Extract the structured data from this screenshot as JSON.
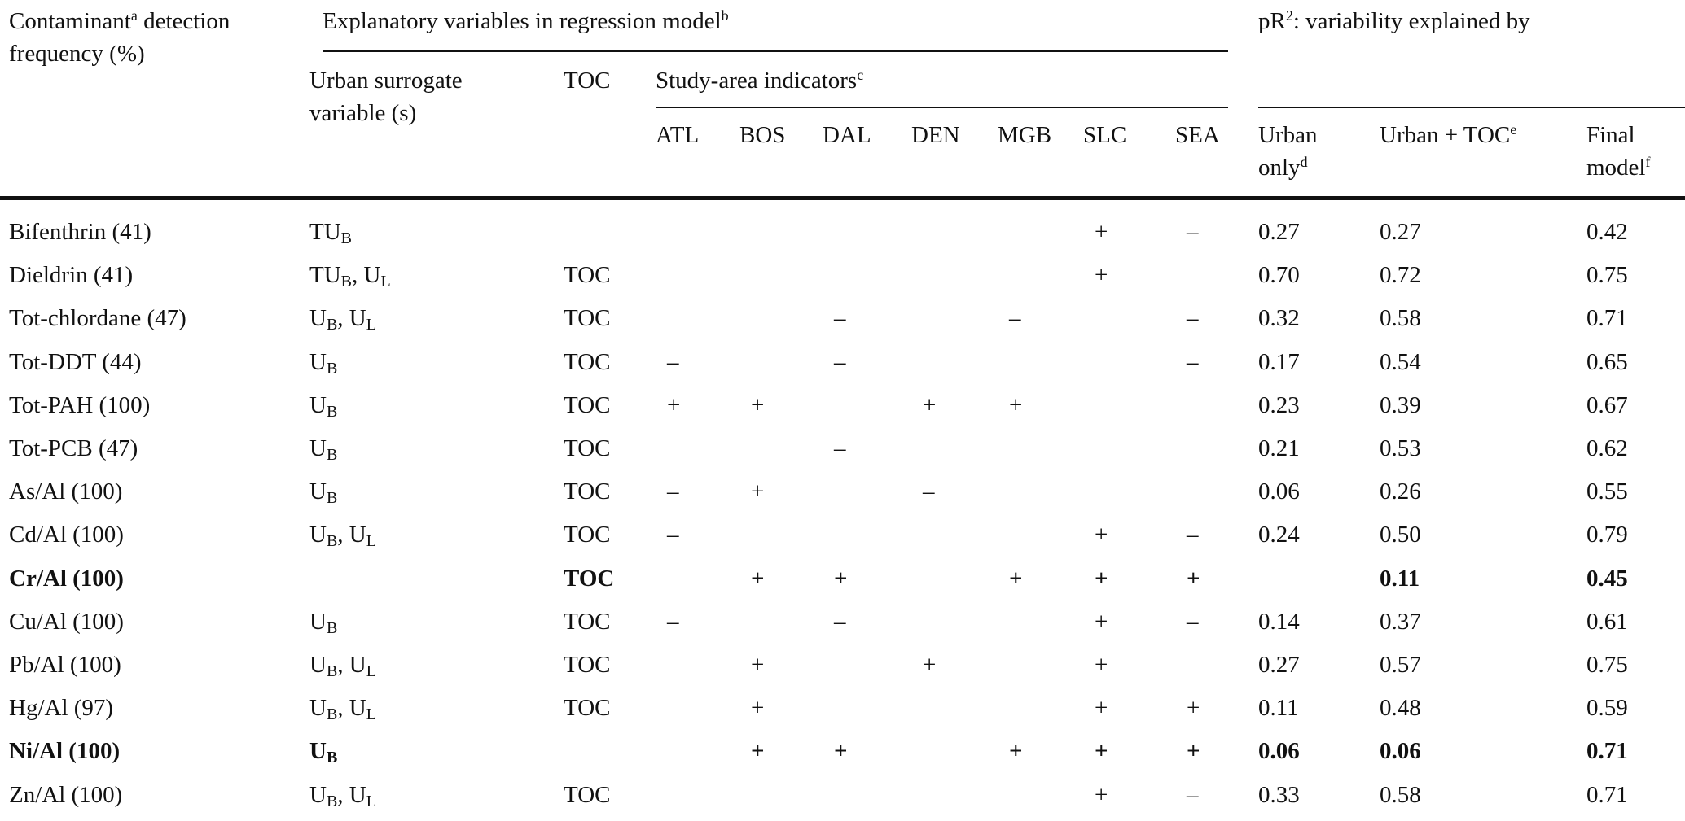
{
  "header": {
    "contaminant": [
      [
        {
          "t": "Contaminant"
        },
        {
          "sup": "a"
        },
        {
          "t": " detection"
        }
      ],
      [
        {
          "t": "frequency (%)"
        }
      ]
    ],
    "explanatory": [
      [
        {
          "t": "Explanatory variables in regression model"
        },
        {
          "sup": "b"
        }
      ]
    ],
    "urban_surrogate": [
      [
        {
          "t": "Urban surrogate"
        }
      ],
      [
        {
          "t": "variable (s)"
        }
      ]
    ],
    "toc": [
      [
        {
          "t": "TOC"
        }
      ]
    ],
    "study_area": [
      [
        {
          "t": "Study-area indicators"
        },
        {
          "sup": "c"
        }
      ]
    ],
    "areas": [
      "ATL",
      "BOS",
      "DAL",
      "DEN",
      "MGB",
      "SLC",
      "SEA"
    ],
    "pr2": [
      [
        {
          "t": "pR"
        },
        {
          "sup": "2"
        },
        {
          "t": ": variability explained by"
        }
      ]
    ],
    "urban_only": [
      [
        {
          "t": "Urban"
        }
      ],
      [
        {
          "t": "only"
        },
        {
          "sup": "d"
        }
      ]
    ],
    "urban_toc": [
      [
        {
          "t": "Urban + TOC"
        },
        {
          "sup": "e"
        }
      ]
    ],
    "final": [
      [
        {
          "t": "Final"
        }
      ],
      [
        {
          "t": "model"
        },
        {
          "sup": "f"
        }
      ]
    ]
  },
  "table": {
    "rows": [
      {
        "contaminant": "Bifenthrin (41)",
        "urban": [
          {
            "t": "TU"
          },
          {
            "sub": "B"
          }
        ],
        "toc": null,
        "areas": [
          null,
          null,
          null,
          null,
          null,
          "+",
          "–"
        ],
        "urban_only": "0.27",
        "urban_toc": "0.27",
        "final": "0.42",
        "bold": false
      },
      {
        "contaminant": "Dieldrin (41)",
        "urban": [
          {
            "t": "TU"
          },
          {
            "sub": "B"
          },
          {
            "t": ", U"
          },
          {
            "sub": "L"
          }
        ],
        "toc": "TOC",
        "areas": [
          null,
          null,
          null,
          null,
          null,
          "+",
          null
        ],
        "urban_only": "0.70",
        "urban_toc": "0.72",
        "final": "0.75",
        "bold": false
      },
      {
        "contaminant": "Tot-chlordane (47)",
        "urban": [
          {
            "t": "U"
          },
          {
            "sub": "B"
          },
          {
            "t": ", U"
          },
          {
            "sub": "L"
          }
        ],
        "toc": "TOC",
        "areas": [
          null,
          null,
          "–",
          null,
          "–",
          null,
          "–"
        ],
        "urban_only": "0.32",
        "urban_toc": "0.58",
        "final": "0.71",
        "bold": false
      },
      {
        "contaminant": "Tot-DDT (44)",
        "urban": [
          {
            "t": "U"
          },
          {
            "sub": "B"
          }
        ],
        "toc": "TOC",
        "areas": [
          "–",
          null,
          "–",
          null,
          null,
          null,
          "–"
        ],
        "urban_only": "0.17",
        "urban_toc": "0.54",
        "final": "0.65",
        "bold": false
      },
      {
        "contaminant": "Tot-PAH (100)",
        "urban": [
          {
            "t": "U"
          },
          {
            "sub": "B"
          }
        ],
        "toc": "TOC",
        "areas": [
          "+",
          "+",
          null,
          "+",
          "+",
          null,
          null
        ],
        "urban_only": "0.23",
        "urban_toc": "0.39",
        "final": "0.67",
        "bold": false
      },
      {
        "contaminant": "Tot-PCB (47)",
        "urban": [
          {
            "t": "U"
          },
          {
            "sub": "B"
          }
        ],
        "toc": "TOC",
        "areas": [
          null,
          null,
          "–",
          null,
          null,
          null,
          null
        ],
        "urban_only": "0.21",
        "urban_toc": "0.53",
        "final": "0.62",
        "bold": false
      },
      {
        "contaminant": "As/Al (100)",
        "urban": [
          {
            "t": "U"
          },
          {
            "sub": "B"
          }
        ],
        "toc": "TOC",
        "areas": [
          "–",
          "+",
          null,
          "–",
          null,
          null,
          null
        ],
        "urban_only": "0.06",
        "urban_toc": "0.26",
        "final": "0.55",
        "bold": false
      },
      {
        "contaminant": "Cd/Al (100)",
        "urban": [
          {
            "t": "U"
          },
          {
            "sub": "B"
          },
          {
            "t": ", U"
          },
          {
            "sub": "L"
          }
        ],
        "toc": "TOC",
        "areas": [
          "–",
          null,
          null,
          null,
          null,
          "+",
          "–"
        ],
        "urban_only": "0.24",
        "urban_toc": "0.50",
        "final": "0.79",
        "bold": false
      },
      {
        "contaminant": "Cr/Al (100)",
        "urban": null,
        "toc": "TOC",
        "areas": [
          null,
          "+",
          "+",
          null,
          "+",
          "+",
          "+"
        ],
        "urban_only": null,
        "urban_toc": "0.11",
        "final": "0.45",
        "bold": true
      },
      {
        "contaminant": "Cu/Al (100)",
        "urban": [
          {
            "t": "U"
          },
          {
            "sub": "B"
          }
        ],
        "toc": "TOC",
        "areas": [
          "–",
          null,
          "–",
          null,
          null,
          "+",
          "–"
        ],
        "urban_only": "0.14",
        "urban_toc": "0.37",
        "final": "0.61",
        "bold": false
      },
      {
        "contaminant": "Pb/Al (100)",
        "urban": [
          {
            "t": "U"
          },
          {
            "sub": "B"
          },
          {
            "t": ", U"
          },
          {
            "sub": "L"
          }
        ],
        "toc": "TOC",
        "areas": [
          null,
          "+",
          null,
          "+",
          null,
          "+",
          null
        ],
        "urban_only": "0.27",
        "urban_toc": "0.57",
        "final": "0.75",
        "bold": false
      },
      {
        "contaminant": "Hg/Al (97)",
        "urban": [
          {
            "t": "U"
          },
          {
            "sub": "B"
          },
          {
            "t": ", U"
          },
          {
            "sub": "L"
          }
        ],
        "toc": "TOC",
        "areas": [
          null,
          "+",
          null,
          null,
          null,
          "+",
          "+"
        ],
        "urban_only": "0.11",
        "urban_toc": "0.48",
        "final": "0.59",
        "bold": false
      },
      {
        "contaminant": "Ni/Al (100)",
        "urban": [
          {
            "t": "U"
          },
          {
            "sub": "B"
          }
        ],
        "toc": null,
        "areas": [
          null,
          "+",
          "+",
          null,
          "+",
          "+",
          "+"
        ],
        "urban_only": "0.06",
        "urban_toc": "0.06",
        "final": "0.71",
        "bold": true
      },
      {
        "contaminant": "Zn/Al (100)",
        "urban": [
          {
            "t": "U"
          },
          {
            "sub": "B"
          },
          {
            "t": ", U"
          },
          {
            "sub": "L"
          }
        ],
        "toc": "TOC",
        "areas": [
          null,
          null,
          null,
          null,
          null,
          "+",
          "–"
        ],
        "urban_only": "0.33",
        "urban_toc": "0.58",
        "final": "0.71",
        "bold": false
      }
    ]
  }
}
